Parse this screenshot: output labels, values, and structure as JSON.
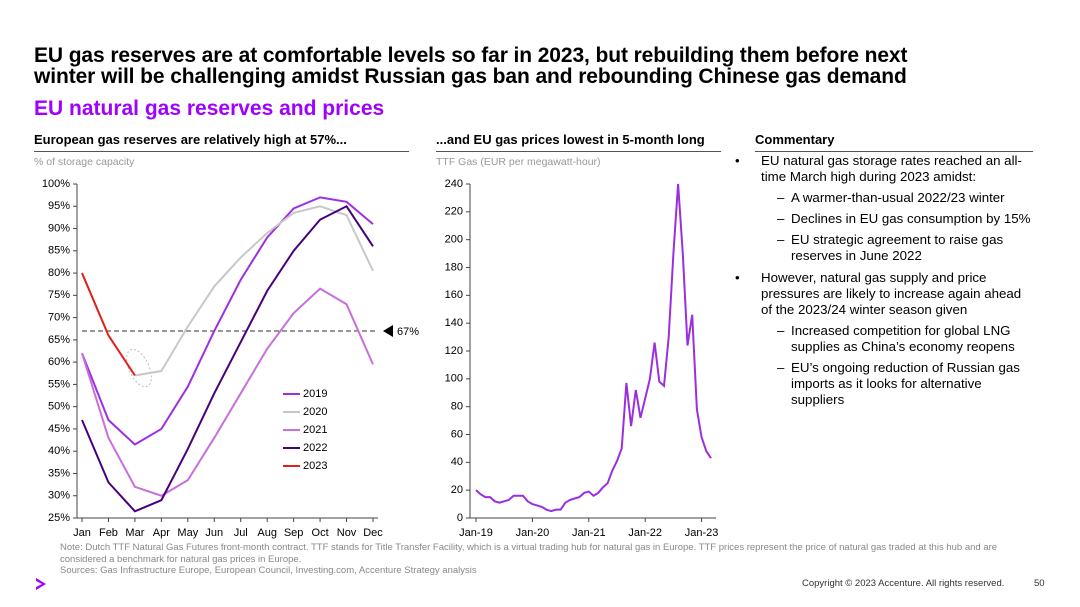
{
  "header": {
    "title_lines": [
      "EU gas reserves are at comfortable levels so far in 2023, but rebuilding them before next",
      "winter will be challenging amidst Russian gas ban and rebounding Chinese gas demand"
    ],
    "subtitle": "EU natural gas reserves and prices"
  },
  "chart_data": [
    {
      "type": "line",
      "title": "European gas reserves are relatively high at 57%...",
      "y_label": "% of storage capacity",
      "categories": [
        "Jan",
        "Feb",
        "Mar",
        "Apr",
        "May",
        "Jun",
        "Jul",
        "Aug",
        "Sep",
        "Oct",
        "Nov",
        "Dec"
      ],
      "series": [
        {
          "name": "2019",
          "color": "#9d2fe3",
          "values": [
            62,
            47,
            41.5,
            45,
            54.5,
            67,
            78.5,
            88,
            94.5,
            97,
            96,
            91
          ]
        },
        {
          "name": "2020",
          "color": "#c8c8c8",
          "values": [
            null,
            null,
            57,
            58,
            68,
            77,
            83.5,
            89,
            93.5,
            95,
            93,
            80.5
          ]
        },
        {
          "name": "2021",
          "color": "#c86fdc",
          "values": [
            62,
            43,
            32,
            30,
            33.5,
            43,
            53,
            63,
            71,
            76.5,
            73,
            59.5
          ]
        },
        {
          "name": "2022",
          "color": "#47007d",
          "values": [
            47,
            33,
            26.5,
            29,
            40.5,
            53,
            64.5,
            76,
            85,
            92,
            95,
            86
          ]
        },
        {
          "name": "2023",
          "color": "#e0201b",
          "values": [
            80,
            66,
            57,
            null,
            null,
            null,
            null,
            null,
            null,
            null,
            null,
            null
          ]
        }
      ],
      "ylim": [
        25,
        100
      ],
      "yticks": [
        {
          "value": 25,
          "label": "25%"
        },
        {
          "value": 30,
          "label": "30%"
        },
        {
          "value": 35,
          "label": "35%"
        },
        {
          "value": 40,
          "label": "40%"
        },
        {
          "value": 45,
          "label": "45%"
        },
        {
          "value": 50,
          "label": "50%"
        },
        {
          "value": 55,
          "label": "55%"
        },
        {
          "value": 60,
          "label": "60%"
        },
        {
          "value": 65,
          "label": "65%"
        },
        {
          "value": 70,
          "label": "70%"
        },
        {
          "value": 75,
          "label": "75%"
        },
        {
          "value": 80,
          "label": "80%"
        },
        {
          "value": 85,
          "label": "85%"
        },
        {
          "value": 90,
          "label": "90%"
        },
        {
          "value": 95,
          "label": "95%"
        },
        {
          "value": 100,
          "label": "100%"
        }
      ],
      "reference_line": {
        "value": 67,
        "label": "67%"
      }
    },
    {
      "type": "line",
      "title": "...and EU gas prices lowest in 5-month long",
      "y_label": "TTF Gas (EUR per megawatt-hour)",
      "categories": [
        "Jan-19",
        null,
        null,
        null,
        null,
        null,
        null,
        null,
        null,
        null,
        null,
        null,
        "Jan-20",
        null,
        null,
        null,
        null,
        null,
        null,
        null,
        null,
        null,
        null,
        null,
        "Jan-21",
        null,
        null,
        null,
        null,
        null,
        null,
        null,
        null,
        null,
        null,
        null,
        "Jan-22",
        null,
        null,
        null,
        null,
        null,
        null,
        null,
        null,
        null,
        null,
        null,
        "Jan-23",
        null,
        null
      ],
      "series": [
        {
          "name": "TTF Gas",
          "color": "#9a2fe0",
          "values": [
            20,
            17,
            15,
            15,
            12,
            11,
            12,
            13,
            16,
            16,
            16,
            12,
            10,
            9,
            8,
            6,
            5,
            6,
            6,
            11,
            13,
            14,
            15,
            18,
            19,
            16,
            18,
            22,
            25,
            34,
            41,
            50,
            97,
            66,
            92,
            72,
            86,
            100,
            126,
            98,
            95,
            130,
            190,
            240,
            190,
            124,
            146,
            78,
            58,
            48,
            43
          ]
        }
      ],
      "ylim": [
        0,
        240
      ],
      "yticks": [
        0,
        20,
        40,
        60,
        80,
        100,
        120,
        140,
        160,
        180,
        200,
        220,
        240
      ]
    }
  ],
  "commentary": {
    "title": "Commentary",
    "bullets": [
      {
        "text": "EU natural gas storage rates reached an all-time March high during 2023 amidst:",
        "sub": [
          "A warmer-than-usual 2022/23 winter",
          "Declines in EU gas consumption by 15%",
          "EU strategic agreement to raise gas reserves in June 2022"
        ]
      },
      {
        "text": "However, natural gas supply and price pressures are likely to increase again ahead of the 2023/24 winter season given",
        "sub": [
          "Increased competition for global LNG supplies as China’s economy reopens",
          "EU’s ongoing reduction of Russian gas imports as it looks for alternative suppliers"
        ]
      }
    ]
  },
  "footer": {
    "note": "Note: Dutch TTF Natural Gas Futures front-month contract. TTF stands for Title Transfer Facility, which is a virtual trading hub for natural gas in Europe. TTF prices represent the price of natural gas traded at this hub and are considered a benchmark for natural gas prices in Europe.",
    "sources": "Sources: Gas Infrastructure Europe, European Council, Investing.com, Accenture Strategy analysis",
    "copyright": "Copyright © 2023 Accenture. All rights reserved.",
    "page": "50"
  }
}
